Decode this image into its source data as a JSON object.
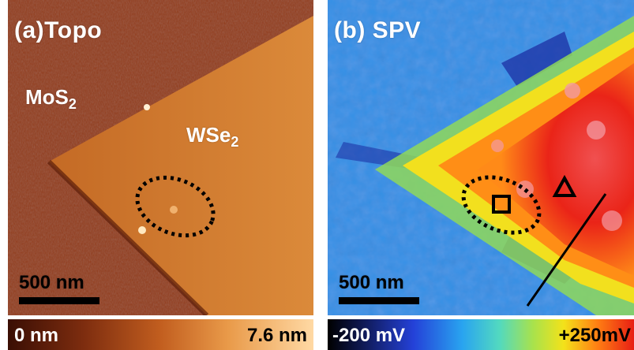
{
  "panel_a": {
    "title": "(a)Topo",
    "labels": {
      "mos2_base": "MoS",
      "mos2_sub": "2",
      "wse2_base": "WSe",
      "wse2_sub": "2"
    },
    "scale_bar": "500 nm"
  },
  "panel_b": {
    "title": "(b) SPV",
    "scale_bar": "500 nm"
  },
  "colorbars": {
    "topo_min": "0 nm",
    "topo_max": "7.6 nm",
    "spv_min": "-200 mV",
    "spv_max": "+250mV"
  },
  "colors": {
    "topo_dark": "#7a2a0c",
    "topo_light": "#e7963f",
    "spv_low": "#2441d8",
    "spv_high": "#e81e14"
  }
}
